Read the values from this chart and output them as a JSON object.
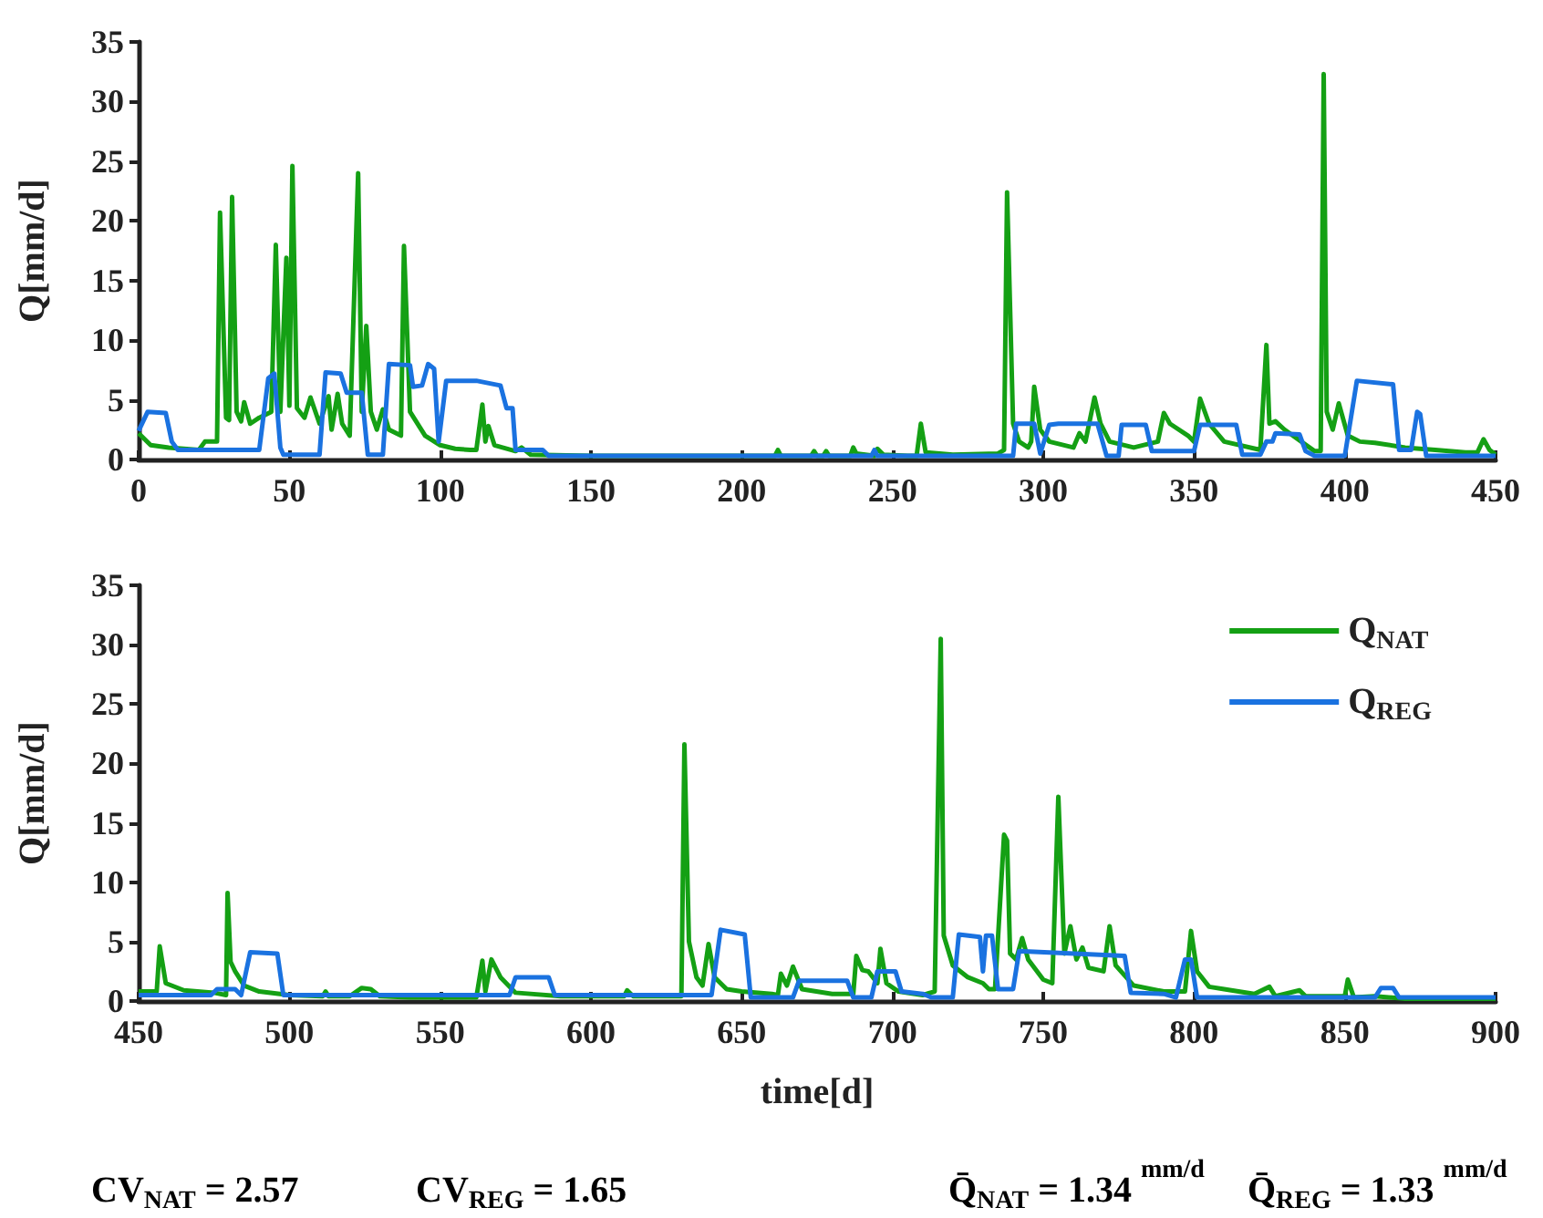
{
  "chart_data": [
    {
      "type": "line",
      "ylabel": "Q[mm/d]",
      "xlim": [
        0,
        450
      ],
      "xticks": [
        0,
        50,
        100,
        150,
        200,
        250,
        300,
        350,
        400,
        450
      ],
      "ylim": [
        0,
        35
      ],
      "yticks": [
        0,
        5,
        10,
        15,
        20,
        25,
        30,
        35
      ],
      "grid": false,
      "series": [
        {
          "color": "#14a014",
          "x": [
            0,
            4,
            10,
            20,
            22,
            26,
            27,
            29,
            30,
            31,
            32.5,
            34,
            35,
            37,
            40,
            44,
            45.5,
            47,
            49,
            50,
            51,
            52.5,
            55,
            57,
            60,
            63,
            64,
            66,
            67.5,
            70,
            72.8,
            74,
            75.5,
            77,
            79,
            81,
            83,
            87,
            88,
            90,
            95,
            100,
            105,
            110,
            112,
            114,
            115,
            116,
            118,
            125,
            127,
            130,
            150,
            211,
            212,
            213,
            223,
            224,
            225,
            227,
            228,
            229,
            236,
            237,
            238,
            244,
            245,
            247,
            255,
            258,
            259.4,
            261,
            270,
            285,
            287,
            288,
            290,
            292,
            295,
            296,
            297,
            299,
            302,
            310,
            312,
            314,
            317,
            319,
            322,
            330,
            338,
            340,
            342,
            348,
            350,
            352,
            355,
            360,
            372,
            374,
            375,
            377,
            380,
            390,
            392,
            393,
            394,
            396,
            398,
            401,
            405,
            410,
            420,
            430,
            440,
            444,
            446,
            448,
            450
          ],
          "values": [
            2.2,
            1.2,
            1.0,
            0.8,
            1.5,
            1.5,
            20.7,
            3.5,
            3.3,
            22,
            4,
            3.2,
            4.8,
            3,
            3.5,
            4,
            18,
            4,
            16.9,
            4.5,
            24.6,
            4.3,
            3.5,
            5.2,
            3,
            5.3,
            2.5,
            5.5,
            3,
            2,
            24,
            4,
            11.2,
            4,
            2.5,
            4.2,
            2.5,
            2,
            17.9,
            4,
            2,
            1.2,
            0.9,
            0.8,
            0.8,
            4.6,
            1.5,
            2.8,
            1.2,
            0.7,
            1.0,
            0.4,
            0.3,
            0.3,
            0.8,
            0.3,
            0.3,
            0.7,
            0.3,
            0.3,
            0.7,
            0.3,
            0.3,
            1.0,
            0.5,
            0.3,
            0.9,
            0.4,
            0.3,
            0.3,
            3.0,
            0.6,
            0.4,
            0.5,
            0.8,
            22.4,
            3,
            1.5,
            1.0,
            1.5,
            6.1,
            2.5,
            1.5,
            1.0,
            2.2,
            1.5,
            5.2,
            3,
            1.5,
            1.0,
            1.5,
            3.9,
            3,
            2,
            1.5,
            5.1,
            3,
            1.5,
            0.8,
            9.6,
            3,
            3.2,
            2.5,
            0.7,
            0.7,
            32.3,
            4,
            2.5,
            4.7,
            2,
            1.5,
            1.4,
            1.0,
            0.8,
            0.6,
            0.6,
            1.7,
            0.8,
            0.4
          ]
        },
        {
          "color": "#1a72e0",
          "x": [
            0,
            3,
            9,
            11,
            13,
            40,
            43,
            45,
            47,
            48,
            60,
            62,
            67,
            69,
            74,
            76,
            81,
            83,
            90,
            91,
            94,
            96,
            98,
            99.5,
            102,
            112,
            120,
            122,
            124,
            125,
            134,
            136,
            243,
            244,
            245,
            290,
            291,
            297,
            299,
            302,
            305,
            318,
            321,
            325,
            326,
            334,
            336,
            350,
            352,
            364,
            366,
            372,
            374,
            376,
            377,
            385,
            387,
            390,
            400,
            404,
            416,
            418,
            422,
            424,
            425,
            427,
            450
          ],
          "values": [
            2.4,
            4.0,
            3.9,
            1.5,
            0.8,
            0.8,
            6.8,
            7.2,
            1.0,
            0.4,
            0.4,
            7.3,
            7.2,
            5.6,
            5.6,
            0.4,
            0.4,
            8.0,
            7.9,
            6.1,
            6.2,
            8.0,
            7.6,
            1.5,
            6.6,
            6.6,
            6.2,
            4.3,
            4.3,
            0.8,
            0.8,
            0.3,
            0.3,
            0.8,
            0.3,
            0.3,
            3.0,
            3.0,
            0.5,
            2.9,
            3.0,
            3.0,
            0.3,
            0.3,
            2.9,
            2.9,
            0.7,
            0.7,
            2.9,
            2.9,
            0.4,
            0.4,
            1.5,
            1.5,
            2.2,
            2.1,
            0.7,
            0.3,
            0.3,
            6.6,
            6.3,
            0.8,
            0.8,
            4.0,
            3.8,
            0.3,
            0.3
          ]
        }
      ]
    },
    {
      "type": "line",
      "xlabel": "time[d]",
      "ylabel": "Q[mm/d]",
      "xlim": [
        450,
        900
      ],
      "xticks": [
        450,
        500,
        550,
        600,
        650,
        700,
        750,
        800,
        850,
        900
      ],
      "ylim": [
        0,
        35
      ],
      "yticks": [
        0,
        5,
        10,
        15,
        20,
        25,
        30,
        35
      ],
      "grid": false,
      "legend": "top right",
      "annotations": [
        "CV$_{NAT}$ = 2.57",
        "CV$_{REG}$ = 1.65",
        "Q̄$_{NAT}$ = 1.34 $^{mm/d}$",
        "Q̄$_{REG}$ = 1.33 $^{mm/d}$"
      ],
      "series": [
        {
          "name": "Q$_{NAT}$",
          "color": "#14a014",
          "x": [
            450,
            456,
            457,
            459,
            465,
            475,
            479,
            479.5,
            480.5,
            482,
            485,
            490,
            500,
            511,
            512,
            513,
            520,
            524,
            527,
            530,
            540,
            562,
            564,
            565,
            567,
            570,
            575,
            590,
            611,
            612,
            614,
            630,
            631,
            632.5,
            635,
            637,
            639,
            641,
            645,
            650,
            660,
            662,
            663,
            665,
            667,
            670,
            680,
            687,
            688,
            690,
            692,
            695,
            696,
            698,
            702,
            710,
            714,
            716,
            717,
            720,
            725,
            730,
            732,
            734,
            737,
            738,
            739,
            741,
            743,
            745,
            750,
            753,
            755,
            757,
            759,
            761,
            763,
            765,
            770,
            772,
            774,
            780,
            790,
            797,
            799,
            801,
            805,
            810,
            820,
            825,
            827,
            835,
            837,
            840,
            850,
            851,
            853,
            860,
            870,
            900
          ],
          "values": [
            0.8,
            0.8,
            4.6,
            1.5,
            0.9,
            0.7,
            0.5,
            9.1,
            3.3,
            2.5,
            1.3,
            0.8,
            0.5,
            0.4,
            0.8,
            0.4,
            0.4,
            1.1,
            1.0,
            0.4,
            0.3,
            0.3,
            3.4,
            0.8,
            3.5,
            2,
            0.7,
            0.4,
            0.4,
            0.9,
            0.4,
            0.4,
            21.6,
            5,
            2,
            1.3,
            4.8,
            2,
            1,
            0.8,
            0.6,
            0.5,
            2.3,
            1.3,
            2.9,
            1,
            0.6,
            0.6,
            3.8,
            2.6,
            2.5,
            1.5,
            4.4,
            1.5,
            0.8,
            0.5,
            0.8,
            30.5,
            5.5,
            3,
            2,
            1.5,
            1.0,
            1.0,
            14.0,
            13.5,
            4,
            3.5,
            5.3,
            3.5,
            1.8,
            1.5,
            17.2,
            4,
            6.3,
            3.5,
            4.5,
            2.8,
            2.5,
            6.3,
            3,
            1.3,
            0.8,
            0.8,
            5.9,
            2.5,
            1.2,
            1.0,
            0.6,
            1.2,
            0.4,
            0.9,
            0.4,
            0.4,
            0.4,
            1.8,
            0.3,
            0.4,
            0.2,
            0.2
          ]
        },
        {
          "name": "Q$_{REG}$",
          "color": "#1a72e0",
          "x": [
            450,
            474,
            476,
            482,
            484,
            487,
            496,
            498,
            573,
            575,
            586,
            588,
            640,
            643,
            651,
            653,
            667,
            669,
            685,
            687,
            693,
            695,
            701,
            703,
            710,
            713,
            720,
            722,
            729,
            730,
            731,
            733,
            735,
            740,
            742,
            777,
            779,
            790,
            794,
            797,
            799,
            801,
            860,
            862,
            866,
            868,
            900
          ],
          "values": [
            0.5,
            0.5,
            1.0,
            1.0,
            0.5,
            4.1,
            4.0,
            0.5,
            0.5,
            2.0,
            2.0,
            0.5,
            0.5,
            6.0,
            5.6,
            0.3,
            0.3,
            1.7,
            1.7,
            0.3,
            0.3,
            2.5,
            2.5,
            0.8,
            0.6,
            0.3,
            0.3,
            5.6,
            5.4,
            2.5,
            5.5,
            5.5,
            1.0,
            1.0,
            4.2,
            3.8,
            0.7,
            0.6,
            0.3,
            3.5,
            3.5,
            0.3,
            0.3,
            1.1,
            1.1,
            0.3,
            0.3
          ]
        }
      ]
    }
  ]
}
